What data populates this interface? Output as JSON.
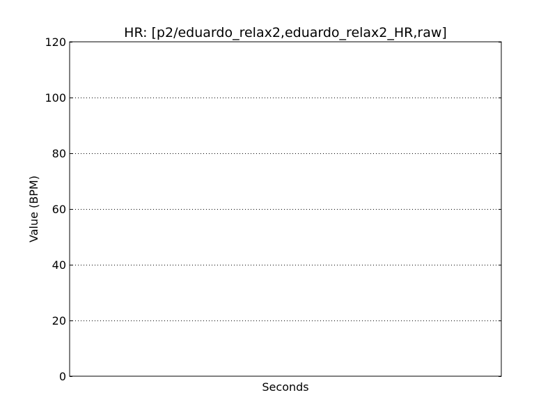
{
  "chart_data": {
    "type": "line",
    "title": "HR: [p2/eduardo_relax2,eduardo_relax2_HR,raw]",
    "xlabel": "Seconds",
    "ylabel": "Value (BPM)",
    "ylim": [
      0,
      120
    ],
    "yticks": [
      0,
      20,
      40,
      60,
      80,
      100,
      120
    ],
    "grid": "y-dotted",
    "series": []
  }
}
